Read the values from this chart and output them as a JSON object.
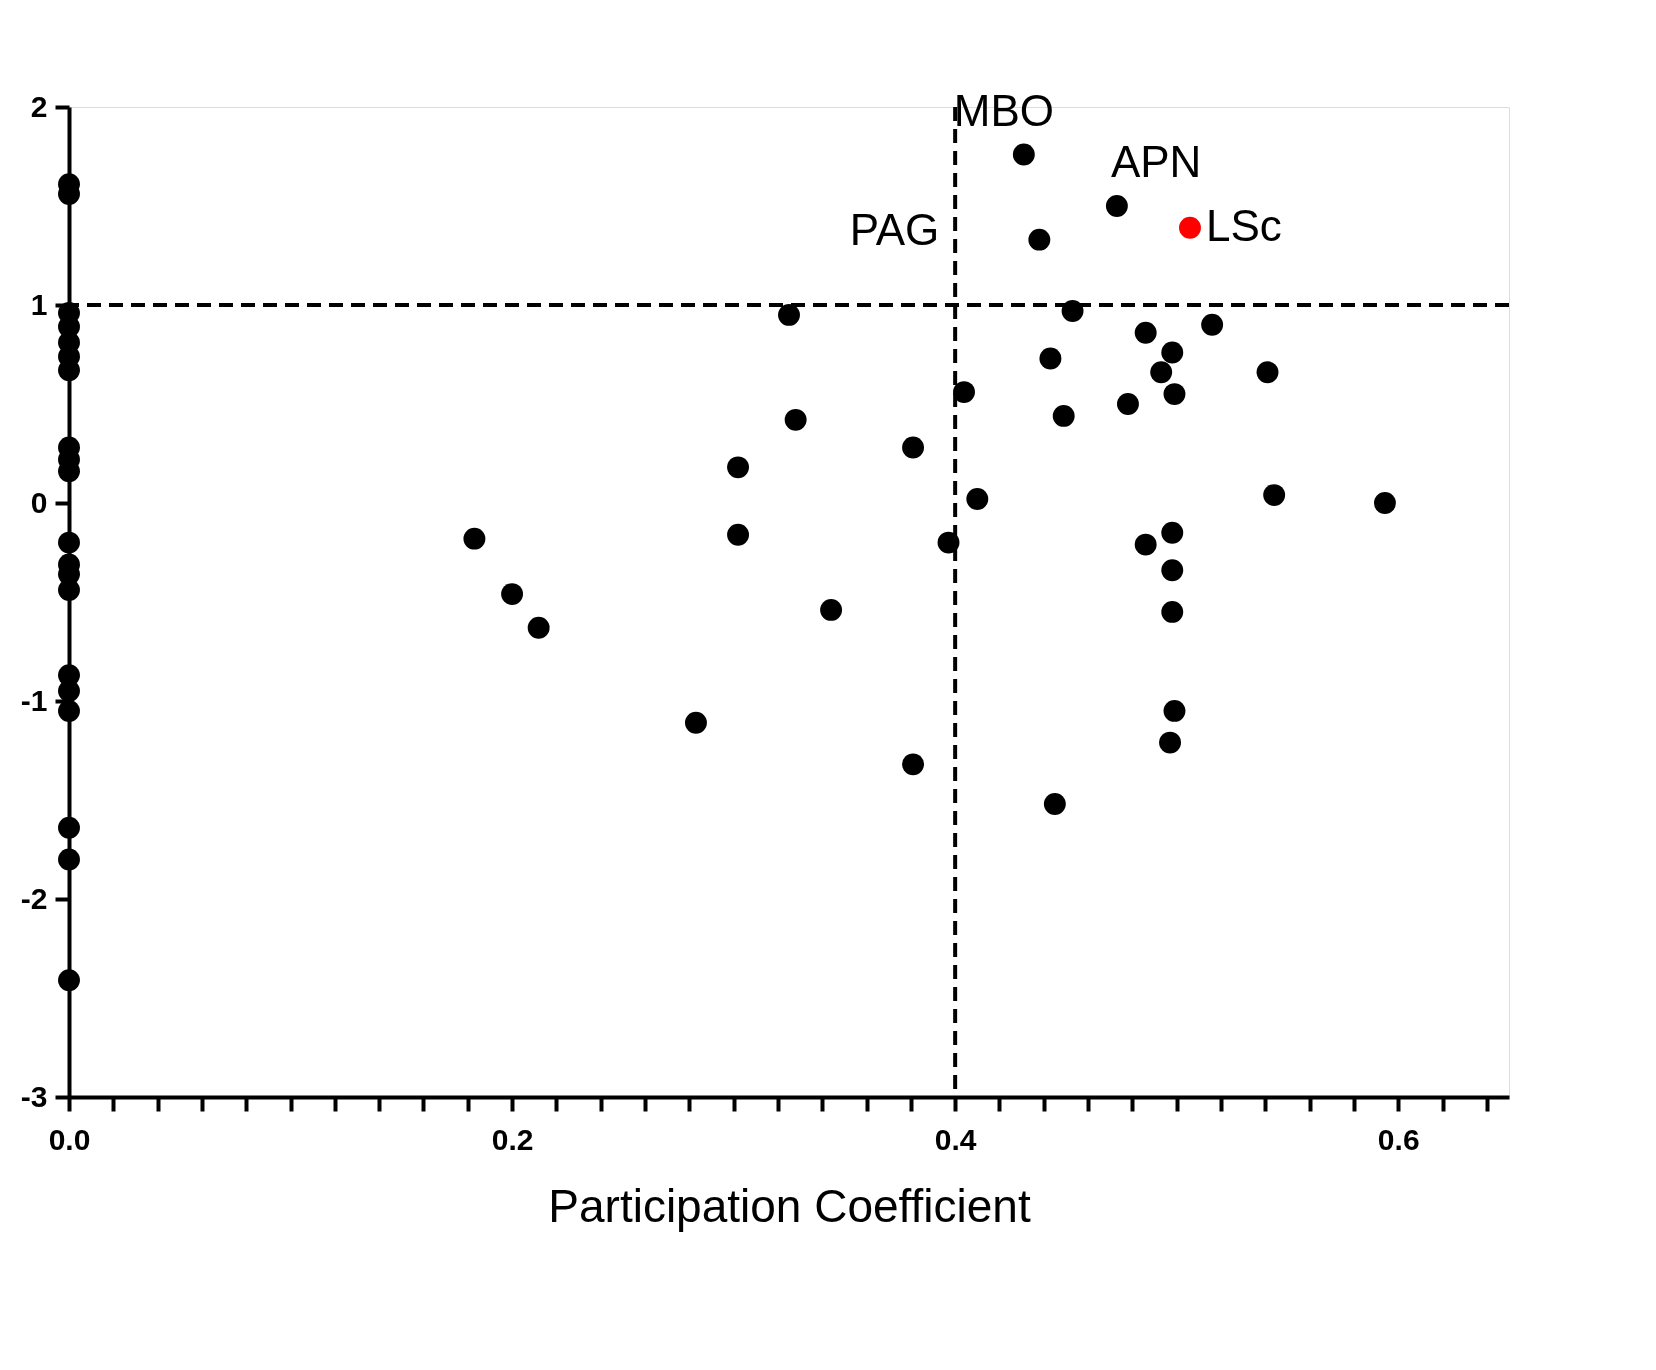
{
  "chart_data": {
    "type": "scatter",
    "xlabel": "Participation Coefficient",
    "xlim": [
      0,
      0.65
    ],
    "ylim": [
      -3,
      2
    ],
    "xticks": [
      {
        "value": 0,
        "label": "0.0"
      },
      {
        "value": 0.02,
        "label": null
      },
      {
        "value": 0.04,
        "label": null
      },
      {
        "value": 0.06,
        "label": null
      },
      {
        "value": 0.08,
        "label": null
      },
      {
        "value": 0.1,
        "label": null
      },
      {
        "value": 0.12,
        "label": null
      },
      {
        "value": 0.14,
        "label": null
      },
      {
        "value": 0.16,
        "label": null
      },
      {
        "value": 0.18,
        "label": null
      },
      {
        "value": 0.2,
        "label": "0.2"
      },
      {
        "value": 0.22,
        "label": null
      },
      {
        "value": 0.24,
        "label": null
      },
      {
        "value": 0.26,
        "label": null
      },
      {
        "value": 0.28,
        "label": null
      },
      {
        "value": 0.3,
        "label": null
      },
      {
        "value": 0.32,
        "label": null
      },
      {
        "value": 0.34,
        "label": null
      },
      {
        "value": 0.36,
        "label": null
      },
      {
        "value": 0.38,
        "label": null
      },
      {
        "value": 0.4,
        "label": "0.4"
      },
      {
        "value": 0.42,
        "label": null
      },
      {
        "value": 0.44,
        "label": null
      },
      {
        "value": 0.46,
        "label": null
      },
      {
        "value": 0.48,
        "label": null
      },
      {
        "value": 0.5,
        "label": null
      },
      {
        "value": 0.52,
        "label": null
      },
      {
        "value": 0.54,
        "label": null
      },
      {
        "value": 0.56,
        "label": null
      },
      {
        "value": 0.58,
        "label": null
      },
      {
        "value": 0.6,
        "label": "0.6"
      },
      {
        "value": 0.62,
        "label": null
      },
      {
        "value": 0.64,
        "label": null
      }
    ],
    "yticks": [
      -3,
      -2,
      -1,
      0,
      1,
      2
    ],
    "grid": false,
    "marker": "circle",
    "series": [
      {
        "color": "#000000",
        "x": [
          0,
          0,
          0,
          0,
          0,
          0,
          0,
          0,
          0,
          0,
          0,
          0,
          0,
          0,
          0,
          0,
          0,
          0,
          0,
          0,
          0.183,
          0.2,
          0.212,
          0.283,
          0.302,
          0.302,
          0.325,
          0.328,
          0.344,
          0.381,
          0.381,
          0.397,
          0.404,
          0.41,
          0.431,
          0.438,
          0.443,
          0.445,
          0.449,
          0.453,
          0.473,
          0.478,
          0.486,
          0.486,
          0.493,
          0.498,
          0.498,
          0.498,
          0.499,
          0.498,
          0.499,
          0.497,
          0.516,
          0.541,
          0.544,
          0.594
        ],
        "values": [
          1.61,
          1.56,
          0.96,
          0.89,
          0.81,
          0.74,
          0.67,
          0.28,
          0.22,
          0.16,
          -0.2,
          -0.31,
          -0.36,
          -0.44,
          -0.87,
          -0.95,
          -1.05,
          -1.64,
          -1.8,
          -2.41,
          -0.18,
          -0.46,
          -0.63,
          -1.11,
          0.18,
          -0.16,
          0.95,
          0.42,
          -0.54,
          0.28,
          -1.32,
          -0.2,
          0.56,
          0.02,
          1.76,
          1.33,
          0.73,
          -1.52,
          0.44,
          0.97,
          1.5,
          0.5,
          0.86,
          -0.21,
          0.66,
          0.76,
          -0.15,
          -0.34,
          0.55,
          -0.55,
          -1.05,
          -1.21,
          0.9,
          0.66,
          0.04,
          0.0
        ]
      },
      {
        "color": "#ff0000",
        "x": [
          0.506
        ],
        "values": [
          1.39
        ]
      }
    ],
    "ref_lines": [
      {
        "axis": "x",
        "value": 0.4,
        "line_style": "dashed"
      },
      {
        "axis": "y",
        "value": 1,
        "line_style": "dashed"
      }
    ],
    "annotations": [
      {
        "text": "MBO",
        "x": 0.431,
        "y": 1.76
      },
      {
        "text": "APN",
        "x": 0.473,
        "y": 1.5
      },
      {
        "text": "PAG",
        "x": 0.438,
        "y": 1.33
      },
      {
        "text": "LSc",
        "x": 0.506,
        "y": 1.39
      }
    ]
  }
}
